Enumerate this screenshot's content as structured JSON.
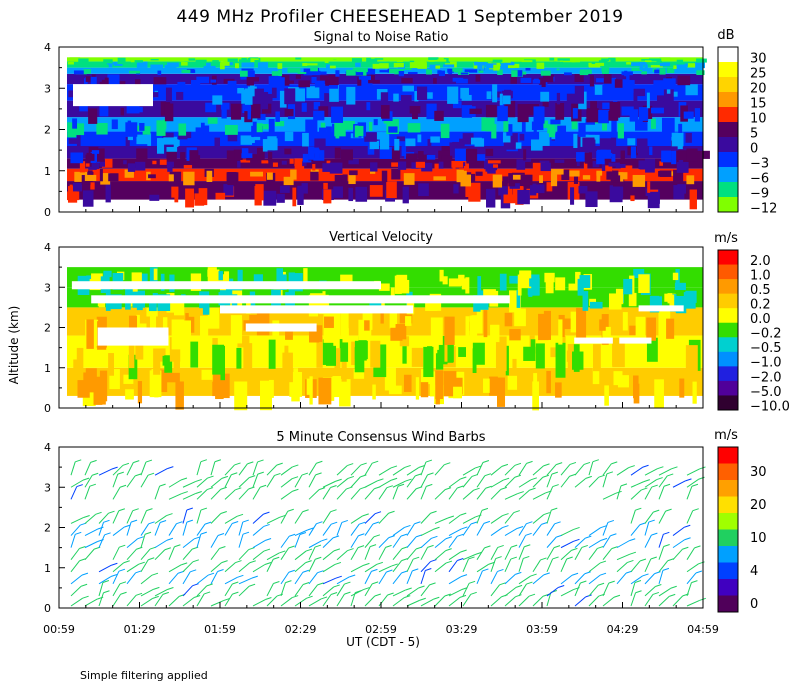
{
  "title": "449 MHz Profiler CHEESEHEAD  1 September 2019",
  "ylabel": "Altitude (km)",
  "xlabel": "UT  (CDT - 5)",
  "footnote": "Simple filtering applied",
  "x_ticks": [
    "00:59",
    "01:29",
    "01:59",
    "02:29",
    "02:59",
    "03:29",
    "03:59",
    "04:29",
    "04:59"
  ],
  "chart_data": [
    {
      "type": "heatmap",
      "title": "Signal to Noise Ratio",
      "ylim": [
        0,
        4
      ],
      "y_ticks": [
        "0",
        "1",
        "2",
        "3",
        "4"
      ],
      "colorbar": {
        "unit": "dB",
        "labels": [
          "30",
          "25",
          "20",
          "15",
          "10",
          "5",
          "0",
          "−3",
          "−6",
          "−9",
          "−12"
        ],
        "colors": [
          "#ffffff",
          "#ffff00",
          "#ffd400",
          "#ff9900",
          "#ff2a00",
          "#55005f",
          "#3a0a9e",
          "#0030ff",
          "#00a0ff",
          "#00e080",
          "#80ff00"
        ]
      },
      "layers": [
        {
          "from": 0.3,
          "to": 0.75,
          "color": "#55005f"
        },
        {
          "from": 0.75,
          "to": 1.05,
          "color": "#ff2a00"
        },
        {
          "from": 1.05,
          "to": 1.3,
          "color": "#55005f"
        },
        {
          "from": 1.3,
          "to": 1.6,
          "color": "#3a0a9e"
        },
        {
          "from": 1.6,
          "to": 1.95,
          "color": "#0030ff"
        },
        {
          "from": 1.95,
          "to": 2.3,
          "color": "#00a0ff"
        },
        {
          "from": 2.3,
          "to": 2.7,
          "color": "#3a0a9e"
        },
        {
          "from": 2.7,
          "to": 3.1,
          "color": "#0030ff"
        },
        {
          "from": 3.1,
          "to": 3.35,
          "color": "#3a0a9e"
        },
        {
          "from": 3.35,
          "to": 3.5,
          "color": "#00a0ff"
        },
        {
          "from": 3.5,
          "to": 3.65,
          "color": "#00e080"
        },
        {
          "from": 3.65,
          "to": 3.75,
          "color": "#80ff00"
        }
      ]
    },
    {
      "type": "heatmap",
      "title": "Vertical Velocity",
      "ylim": [
        0,
        4
      ],
      "y_ticks": [
        "0",
        "1",
        "2",
        "3",
        "4"
      ],
      "colorbar": {
        "unit": "m/s",
        "labels": [
          "2.0",
          "1.0",
          "0.5",
          "0.2",
          "0.0",
          "−0.2",
          "−0.5",
          "−1.0",
          "−2.0",
          "−5.0",
          "−10.0"
        ],
        "colors": [
          "#ff0000",
          "#ff5a00",
          "#ff9a00",
          "#ffcc00",
          "#ffff00",
          "#33dd00",
          "#00d0d0",
          "#0090ff",
          "#2020e0",
          "#50009a",
          "#300030"
        ]
      },
      "layers": [
        {
          "from": 0.3,
          "to": 1.0,
          "color": "#ffcc00"
        },
        {
          "from": 1.0,
          "to": 1.8,
          "color": "#ffff00"
        },
        {
          "from": 1.8,
          "to": 2.5,
          "color": "#ffcc00"
        },
        {
          "from": 2.5,
          "to": 3.0,
          "color": "#33dd00"
        },
        {
          "from": 3.0,
          "to": 3.5,
          "color": "#33dd00"
        }
      ]
    },
    {
      "type": "scatter",
      "title": "5 Minute Consensus Wind Barbs",
      "ylim": [
        0,
        4
      ],
      "y_ticks": [
        "0",
        "1",
        "2",
        "3",
        "4"
      ],
      "colorbar": {
        "unit": "m/s",
        "labels": [
          "30",
          "20",
          "10",
          "4",
          "0"
        ],
        "colors": [
          "#ff0000",
          "#ff6000",
          "#ffa000",
          "#ffe000",
          "#a0ff00",
          "#20d060",
          "#00a0ff",
          "#0040ff",
          "#4000c0",
          "#50005a"
        ]
      },
      "barb_levels": [
        {
          "alt": 0.05,
          "color": "#20d060"
        },
        {
          "alt": 0.3,
          "color": "#20d060"
        },
        {
          "alt": 0.6,
          "color": "#00a0ff"
        },
        {
          "alt": 0.9,
          "color": "#20d060"
        },
        {
          "alt": 1.2,
          "color": "#20d060"
        },
        {
          "alt": 1.5,
          "color": "#00a0ff"
        },
        {
          "alt": 1.8,
          "color": "#00a0ff"
        },
        {
          "alt": 2.1,
          "color": "#20d060"
        },
        {
          "alt": 2.7,
          "color": "#20d060"
        },
        {
          "alt": 3.0,
          "color": "#20d060"
        },
        {
          "alt": 3.3,
          "color": "#20d060"
        }
      ]
    }
  ]
}
